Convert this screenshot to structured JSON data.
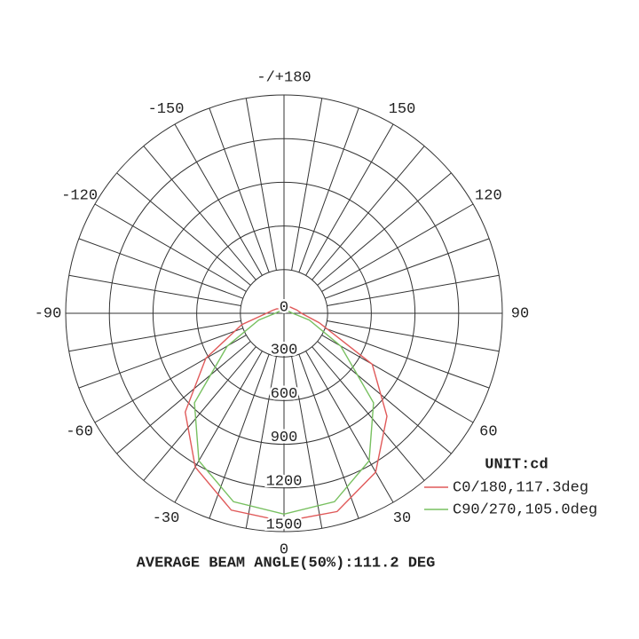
{
  "chart_data": {
    "type": "polar",
    "x": [
      -180,
      -165,
      -150,
      -135,
      -120,
      -105,
      -90,
      -75,
      -60,
      -45,
      -30,
      -15,
      0,
      15,
      30,
      45,
      60,
      75,
      90,
      105,
      120,
      135,
      150,
      165,
      180
    ],
    "series": [
      {
        "name": "C0/180,117.3deg",
        "color": "#e05a5a",
        "values": [
          40,
          40,
          40,
          45,
          60,
          80,
          120,
          300,
          620,
          960,
          1220,
          1400,
          1430,
          1410,
          1260,
          1000,
          700,
          250,
          120,
          90,
          70,
          60,
          50,
          45,
          40
        ]
      },
      {
        "name": "C90/270,105.0deg",
        "color": "#78c060",
        "values": [
          20,
          20,
          22,
          25,
          30,
          40,
          60,
          180,
          450,
          870,
          1170,
          1340,
          1380,
          1340,
          1170,
          870,
          450,
          180,
          60,
          40,
          30,
          25,
          22,
          20,
          20
        ]
      }
    ],
    "ylim": [
      0,
      1500
    ],
    "yticks": [
      0,
      300,
      600,
      900,
      1200,
      1500
    ],
    "xticks": [
      {
        "value": -180,
        "label": "-/+180"
      },
      -150,
      -120,
      -90,
      -60,
      -30,
      0,
      30,
      60,
      90,
      120,
      150
    ],
    "unit_label": "UNIT:cd",
    "footer": "AVERAGE BEAM ANGLE(50%):111.2 DEG"
  }
}
